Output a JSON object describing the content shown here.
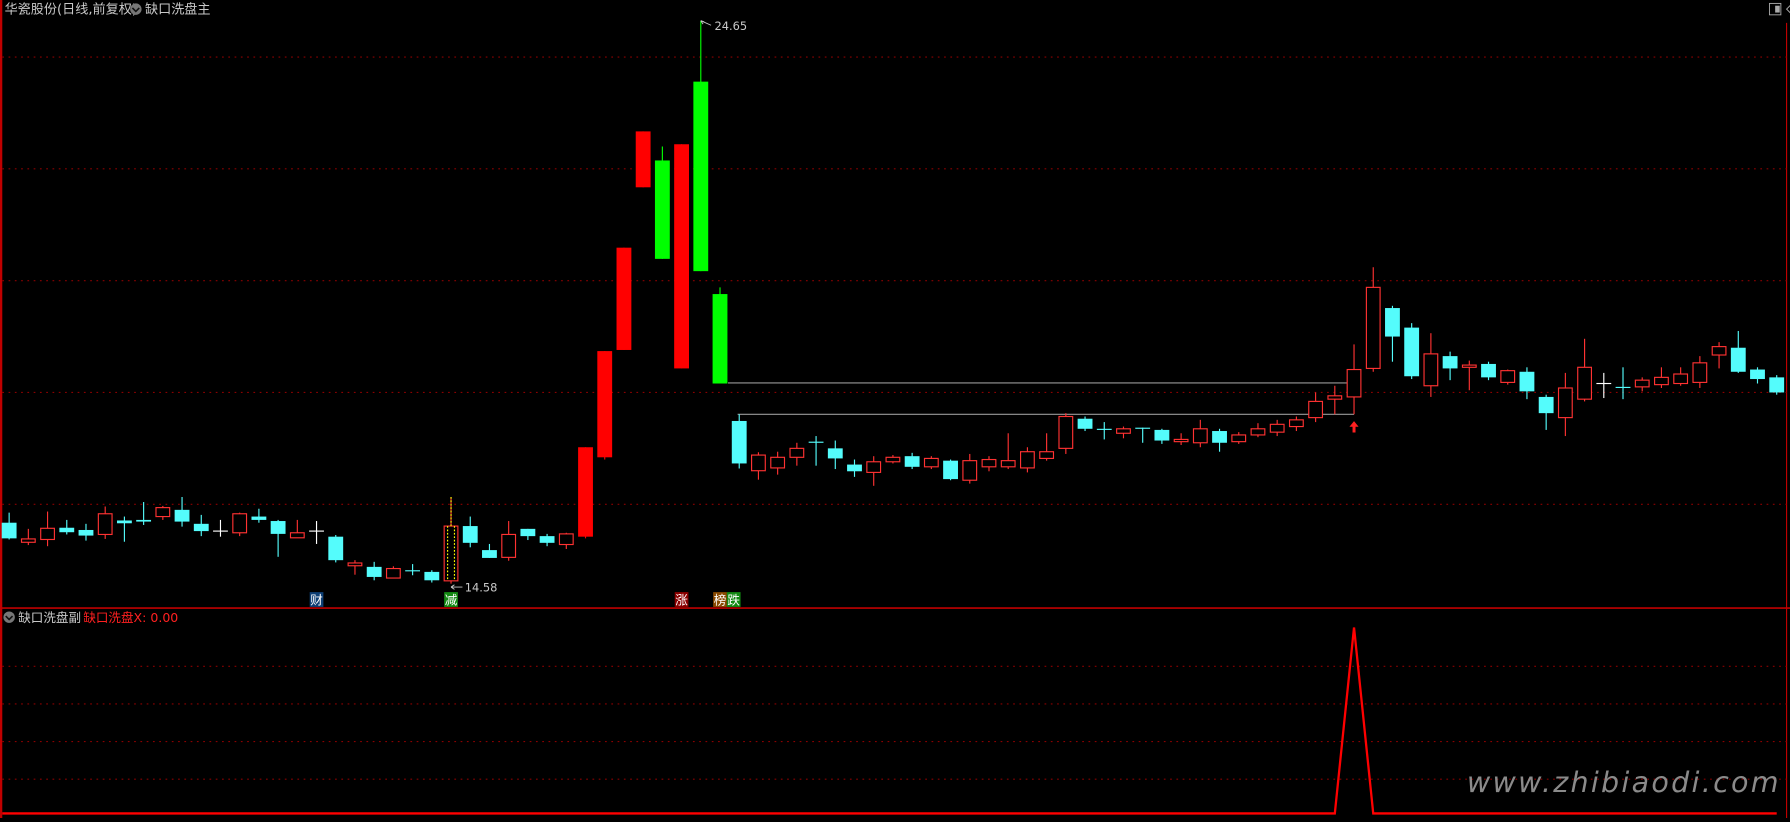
{
  "header": {
    "stock_title": "华瓷股份(日线,前复权)",
    "main_indicator": "缺口洗盘主",
    "right_icons": [
      "diamond-icon",
      "layout-toggle-icon"
    ]
  },
  "sub_panel": {
    "indicator_name": "缺口洗盘副",
    "series_label": "缺口洗盘X: 0.00",
    "line_color": "#ff0000"
  },
  "colors": {
    "up": "#ff3232",
    "down": "#54fcfc",
    "solid_red": "#ff0000",
    "green": "#00ff00",
    "doji": "#ffffff",
    "grid": "#8b0000",
    "border": "#c00000"
  },
  "annotations": {
    "high_label": "24.65",
    "low_label": "14.58"
  },
  "signals": [
    {
      "candle": 17,
      "text": "财",
      "bg": "#0d3f75"
    },
    {
      "candle": 24,
      "text": "减",
      "bg": "#138a13"
    },
    {
      "candle": 36,
      "text": "涨",
      "bg": "#8a0000"
    },
    {
      "candle": 38,
      "text": "榜",
      "bg": "#8a4a00"
    },
    {
      "candle": 38,
      "text": "跌",
      "bg": "#138a13",
      "offset": 1
    }
  ],
  "levels": [
    {
      "price": 18.17,
      "from": 38,
      "to": 71
    },
    {
      "price": 17.61,
      "from": 38.5,
      "to": 71
    }
  ],
  "arrow_candle": 71,
  "watermark": "www.zhibiaodi.com",
  "chart_data": {
    "type": "candlestick",
    "ylim": [
      14.3,
      25.0
    ],
    "grid_prices": [
      16,
      18,
      20,
      22,
      24
    ],
    "candles": [
      [
        15.67,
        15.85,
        15.37,
        15.39
      ],
      [
        15.32,
        15.56,
        15.27,
        15.38
      ],
      [
        15.37,
        15.87,
        15.25,
        15.57
      ],
      [
        15.58,
        15.72,
        15.46,
        15.5
      ],
      [
        15.54,
        15.65,
        15.35,
        15.44
      ],
      [
        15.46,
        15.96,
        15.38,
        15.83
      ],
      [
        15.71,
        15.78,
        15.33,
        15.66
      ],
      [
        15.72,
        16.04,
        15.63,
        15.69
      ],
      [
        15.78,
        15.97,
        15.72,
        15.94
      ],
      [
        15.9,
        16.13,
        15.6,
        15.69
      ],
      [
        15.65,
        15.81,
        15.43,
        15.52
      ],
      [
        15.52,
        15.72,
        15.42,
        15.52,
        "white"
      ],
      [
        15.49,
        15.85,
        15.43,
        15.83
      ],
      [
        15.78,
        15.92,
        15.67,
        15.72
      ],
      [
        15.7,
        15.72,
        15.06,
        15.47
      ],
      [
        15.4,
        15.72,
        15.4,
        15.49
      ],
      [
        15.52,
        15.7,
        15.29,
        15.52,
        "white"
      ],
      [
        15.42,
        15.45,
        14.96,
        15.0
      ],
      [
        14.9,
        15.0,
        14.74,
        14.95
      ],
      [
        14.88,
        14.97,
        14.64,
        14.7
      ],
      [
        14.68,
        14.89,
        14.68,
        14.85
      ],
      [
        14.82,
        14.93,
        14.73,
        14.81
      ],
      [
        14.79,
        14.82,
        14.6,
        14.64
      ],
      [
        14.63,
        16.13,
        14.58,
        15.61,
        "highlight"
      ],
      [
        15.61,
        15.78,
        15.23,
        15.31
      ],
      [
        15.18,
        15.29,
        15.04,
        15.04
      ],
      [
        15.05,
        15.7,
        14.99,
        15.46
      ],
      [
        15.56,
        15.56,
        15.36,
        15.43
      ],
      [
        15.43,
        15.47,
        15.25,
        15.31
      ],
      [
        15.28,
        15.49,
        15.2,
        15.47
      ],
      [
        15.42,
        17.02,
        15.39,
        17.02,
        "solid"
      ],
      [
        16.84,
        18.74,
        16.8,
        18.74,
        "solid"
      ],
      [
        18.76,
        20.59,
        18.76,
        20.59,
        "solid"
      ],
      [
        21.67,
        22.67,
        21.67,
        22.67,
        "solid"
      ],
      [
        22.15,
        22.4,
        20.39,
        20.39,
        "green"
      ],
      [
        18.43,
        22.44,
        18.43,
        22.44,
        "solid"
      ],
      [
        23.56,
        24.65,
        20.17,
        20.17,
        "green"
      ],
      [
        19.76,
        19.88,
        18.16,
        18.16,
        "green"
      ],
      [
        17.49,
        17.61,
        16.64,
        16.73
      ],
      [
        16.6,
        16.93,
        16.44,
        16.88
      ],
      [
        16.65,
        16.94,
        16.53,
        16.84
      ],
      [
        16.84,
        17.1,
        16.69,
        17.0
      ],
      [
        17.12,
        17.22,
        16.69,
        17.1
      ],
      [
        17.0,
        17.14,
        16.63,
        16.82
      ],
      [
        16.71,
        16.8,
        16.49,
        16.59
      ],
      [
        16.57,
        16.86,
        16.33,
        16.76
      ],
      [
        16.76,
        16.88,
        16.73,
        16.84
      ],
      [
        16.86,
        16.92,
        16.63,
        16.67
      ],
      [
        16.67,
        16.86,
        16.63,
        16.82
      ],
      [
        16.78,
        16.8,
        16.43,
        16.45
      ],
      [
        16.43,
        16.9,
        16.37,
        16.78
      ],
      [
        16.67,
        16.86,
        16.59,
        16.8
      ],
      [
        16.67,
        17.27,
        16.63,
        16.78
      ],
      [
        16.65,
        17.02,
        16.57,
        16.94
      ],
      [
        16.82,
        17.27,
        16.78,
        16.94
      ],
      [
        17.0,
        17.63,
        16.9,
        17.57
      ],
      [
        17.53,
        17.57,
        17.31,
        17.35
      ],
      [
        17.35,
        17.47,
        17.16,
        17.33
      ],
      [
        17.27,
        17.39,
        17.18,
        17.35
      ],
      [
        17.37,
        17.37,
        17.1,
        17.35
      ],
      [
        17.33,
        17.35,
        17.08,
        17.14
      ],
      [
        17.12,
        17.27,
        17.06,
        17.16
      ],
      [
        17.1,
        17.51,
        17.02,
        17.35
      ],
      [
        17.31,
        17.35,
        16.94,
        17.1
      ],
      [
        17.12,
        17.29,
        17.08,
        17.24
      ],
      [
        17.24,
        17.45,
        17.2,
        17.35
      ],
      [
        17.29,
        17.51,
        17.22,
        17.43
      ],
      [
        17.39,
        17.57,
        17.31,
        17.51
      ],
      [
        17.55,
        18.0,
        17.47,
        17.84
      ],
      [
        17.88,
        18.12,
        17.61,
        17.94
      ],
      [
        17.92,
        18.86,
        17.61,
        18.41
      ],
      [
        18.43,
        20.24,
        18.37,
        19.88
      ],
      [
        19.51,
        19.55,
        18.55,
        19.0
      ],
      [
        19.16,
        19.24,
        18.24,
        18.29
      ],
      [
        18.12,
        19.06,
        17.92,
        18.69
      ],
      [
        18.65,
        18.73,
        18.22,
        18.43
      ],
      [
        18.45,
        18.57,
        18.04,
        18.49
      ],
      [
        18.51,
        18.55,
        18.22,
        18.27
      ],
      [
        18.18,
        18.41,
        18.14,
        18.39
      ],
      [
        18.37,
        18.45,
        17.88,
        18.02
      ],
      [
        17.92,
        17.96,
        17.33,
        17.63
      ],
      [
        17.55,
        18.35,
        17.22,
        18.08
      ],
      [
        17.88,
        18.96,
        17.84,
        18.45
      ],
      [
        18.16,
        18.35,
        17.9,
        18.16,
        "white"
      ],
      [
        18.1,
        18.45,
        17.88,
        18.08
      ],
      [
        18.1,
        18.27,
        18.02,
        18.22
      ],
      [
        18.14,
        18.45,
        18.08,
        18.27
      ],
      [
        18.16,
        18.45,
        18.12,
        18.33
      ],
      [
        18.18,
        18.65,
        18.08,
        18.53
      ],
      [
        18.67,
        18.9,
        18.43,
        18.82
      ],
      [
        18.8,
        19.1,
        18.35,
        18.37
      ],
      [
        18.41,
        18.45,
        18.16,
        18.24
      ],
      [
        18.27,
        18.31,
        17.96,
        18.0
      ]
    ],
    "sub_series": {
      "name": "缺口洗盘X",
      "spike_candle": 71,
      "spike_value": 1,
      "baseline": 0
    }
  }
}
